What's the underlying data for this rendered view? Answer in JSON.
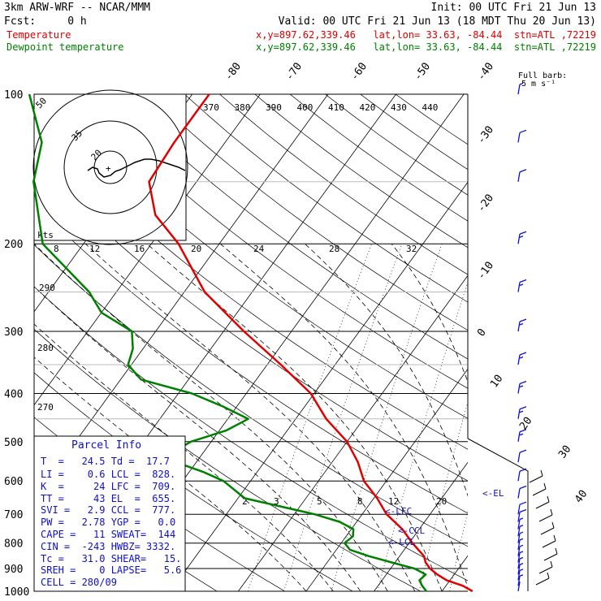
{
  "header": {
    "model": "3km ARW-WRF -- NCAR/MMM",
    "init": "Init: 00 UTC Fri 21 Jun 13",
    "fcst": "Fcst:     0 h",
    "valid": "Valid: 00 UTC Fri 21 Jun 13 (18 MDT Thu 20 Jun 13)",
    "temp_label": "Temperature",
    "temp_info": "x,y=897.62,339.46   lat,lon= 33.63, -84.44  stn=ATL ,72219",
    "dew_label": "Dewpoint temperature",
    "dew_info": "x,y=897.62,339.46   lat,lon= 33.63, -84.44  stn=ATL ,72219"
  },
  "barb_legend": {
    "title": "Full barb:",
    "value": "5 m s⁻¹"
  },
  "hodograph": {
    "kts_label": "kts",
    "ring_labels": [
      "50",
      "35",
      "20"
    ]
  },
  "level_markers": [
    "<-EL",
    "<-LFC",
    "<-CCL",
    "<-LCL"
  ],
  "parcel_info": {
    "title": "Parcel Info",
    "lines": [
      "T  =   24.5 Td =  17.7",
      "LI =    0.6 LCL =  828.",
      "K  =     24 LFC =  709.",
      "TT =     43 EL  =  655.",
      "SVI =   2.9 CCL =  777.",
      "PW =   2.78 YGP =   0.0",
      "CAPE =   11 SWEAT=  144",
      "CIN =  -243 HWBZ= 3332.",
      "Tc =   31.0 SHEAR=   15.",
      "SREH =    0 LAPSE=   5.6",
      "CELL = 280/09"
    ]
  },
  "chart_data": {
    "type": "line",
    "title": "",
    "xlabel": "",
    "ylabel": "",
    "y_scale": "log",
    "ylim": [
      1000,
      100
    ],
    "pressure_ticks": [
      "100",
      "200",
      "300",
      "400",
      "500",
      "600",
      "700",
      "800",
      "900",
      "1000"
    ],
    "isotherm_ticks": [
      "-80",
      "-70",
      "-60",
      "-50",
      "-40",
      "-30",
      "-20",
      "-10",
      "0",
      "10",
      "20",
      "30",
      "40"
    ],
    "theta_ticks": [
      "370",
      "380",
      "390",
      "400",
      "410",
      "420",
      "430",
      "440"
    ],
    "theta_low_ticks": [
      "290",
      "280",
      "270"
    ],
    "mixing_ratio_upper": [
      "8",
      "12",
      "16",
      "20",
      "24",
      "28",
      "32"
    ],
    "mixing_ratio_lower": [
      "2",
      "3",
      "5",
      "8",
      "12",
      "20"
    ],
    "series": [
      {
        "name": "Temperature",
        "color": "#e00000",
        "pressure": [
          1000,
          975,
          950,
          925,
          900,
          875,
          850,
          800,
          750,
          700,
          650,
          600,
          550,
          500,
          450,
          400,
          350,
          300,
          250,
          200,
          175,
          150,
          125,
          100
        ],
        "values": [
          24.5,
          22.5,
          19.5,
          17.5,
          15.8,
          14.5,
          13.6,
          10.5,
          7.5,
          3.6,
          0.5,
          -3.3,
          -6.2,
          -10.0,
          -15.5,
          -20.5,
          -28.0,
          -37.0,
          -47.0,
          -56.0,
          -62.5,
          -67.0,
          -67.5,
          -67.5
        ]
      },
      {
        "name": "Dewpoint temperature",
        "color": "#008000",
        "pressure": [
          1000,
          975,
          950,
          925,
          900,
          875,
          850,
          825,
          800,
          775,
          750,
          725,
          700,
          650,
          600,
          575,
          550,
          525,
          500,
          475,
          450,
          425,
          400,
          375,
          350,
          325,
          300,
          275,
          250,
          200,
          150,
          125,
          100
        ],
        "values": [
          17.7,
          16.5,
          15.5,
          15.8,
          13.5,
          9.5,
          5.5,
          2.0,
          0.5,
          1.0,
          0.3,
          -2.5,
          -7.0,
          -19.0,
          -24.0,
          -28.0,
          -33.0,
          -34.5,
          -33.0,
          -29.0,
          -27.0,
          -32.0,
          -38.0,
          -47.0,
          -50.5,
          -51.5,
          -53.5,
          -60.0,
          -64.0,
          -76.0,
          -84.0,
          -87.0,
          -94.0
        ]
      }
    ],
    "wind_barbs_kt": {
      "pressure": [
        1000,
        975,
        950,
        925,
        900,
        875,
        850,
        825,
        800,
        775,
        750,
        725,
        700,
        650,
        600,
        550,
        500,
        450,
        400,
        350,
        300,
        250,
        200,
        150,
        125,
        100
      ],
      "speed": [
        4,
        5,
        5,
        6,
        8,
        9,
        9,
        8,
        8,
        8,
        9,
        10,
        10,
        10,
        12,
        14,
        16,
        15,
        17,
        18,
        17,
        17,
        17,
        12,
        10,
        7
      ],
      "direction": [
        200,
        220,
        240,
        250,
        265,
        280,
        285,
        290,
        290,
        285,
        280,
        280,
        275,
        270,
        265,
        265,
        270,
        270,
        265,
        265,
        268,
        270,
        270,
        260,
        250,
        245
      ]
    }
  }
}
